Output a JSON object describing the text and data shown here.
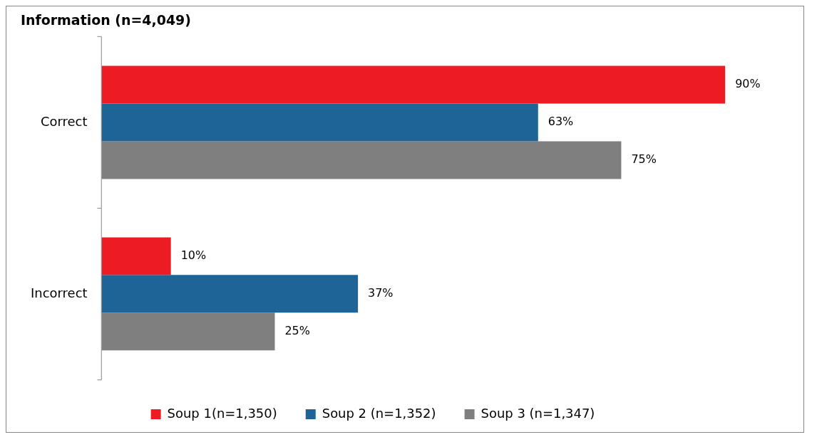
{
  "chart_data": {
    "type": "bar",
    "orientation": "horizontal",
    "title": "Information (n=4,049)",
    "categories": [
      "Correct",
      "Incorrect"
    ],
    "series": [
      {
        "name": "Soup 1(n=1,350)",
        "color": "#ed1c24",
        "values": [
          90,
          10
        ],
        "value_labels": [
          "90%",
          "10%"
        ]
      },
      {
        "name": "Soup 2 (n=1,352)",
        "color": "#1f6496",
        "values": [
          63,
          37
        ],
        "value_labels": [
          "63%",
          "37%"
        ]
      },
      {
        "name": "Soup 3 (n=1,347)",
        "color": "#7f7f7f",
        "values": [
          75,
          25
        ],
        "value_labels": [
          "75%",
          "25%"
        ]
      }
    ],
    "legend": "bottom",
    "tick_labels": "y"
  }
}
